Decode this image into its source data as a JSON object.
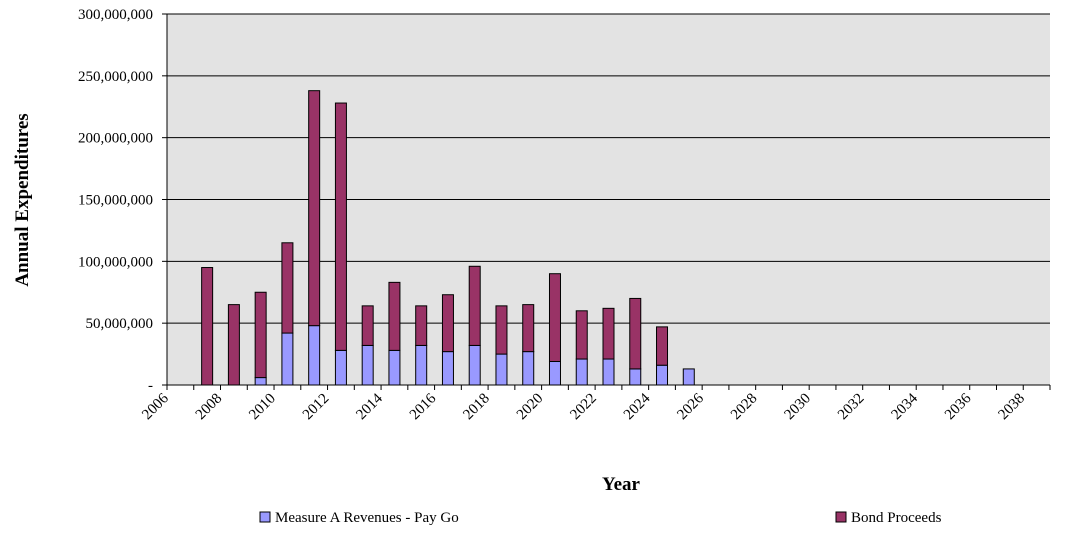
{
  "chart_data": {
    "type": "stacked_bar",
    "y_label": "Annual Expenditures",
    "x_label": "Year",
    "categories": [
      "2006",
      null,
      "2008",
      null,
      "2010",
      null,
      "2012",
      null,
      "2014",
      null,
      "2016",
      null,
      "2018",
      null,
      "2020",
      null,
      "2022",
      null,
      "2024",
      null,
      "2026",
      null,
      "2028",
      null,
      "2030",
      null,
      "2032",
      null,
      "2034",
      null,
      "2036",
      null,
      "2038"
    ],
    "series": [
      {
        "name": "Measure A Revenues - Pay Go",
        "color": "#9999ff",
        "values": [
          0,
          0,
          0,
          6000000,
          42000000,
          48000000,
          28000000,
          32000000,
          28000000,
          32000000,
          27000000,
          32000000,
          25000000,
          27000000,
          19000000,
          21000000,
          21000000,
          13000000,
          16000000,
          13000000,
          0,
          0,
          0,
          0,
          0,
          0,
          0,
          0,
          0,
          0,
          0,
          0,
          0
        ]
      },
      {
        "name": "Bond Proceeds",
        "color": "#993366",
        "values": [
          0,
          95000000,
          65000000,
          69000000,
          73000000,
          190000000,
          200000000,
          32000000,
          55000000,
          32000000,
          46000000,
          64000000,
          39000000,
          38000000,
          71000000,
          39000000,
          41000000,
          57000000,
          31000000,
          0,
          0,
          0,
          0,
          0,
          0,
          0,
          0,
          0,
          0,
          0,
          0,
          0,
          0
        ]
      }
    ],
    "ylim": [
      0,
      300000000
    ],
    "yticks": [
      {
        "value": 0,
        "label": "-"
      },
      {
        "value": 50000000,
        "label": "50,000,000"
      },
      {
        "value": 100000000,
        "label": "100,000,000"
      },
      {
        "value": 150000000,
        "label": "150,000,000"
      },
      {
        "value": 200000000,
        "label": "200,000,000"
      },
      {
        "value": 250000000,
        "label": "250,000,000"
      },
      {
        "value": 300000000,
        "label": "300,000,000"
      }
    ],
    "grid": true,
    "legend": "bottom"
  }
}
